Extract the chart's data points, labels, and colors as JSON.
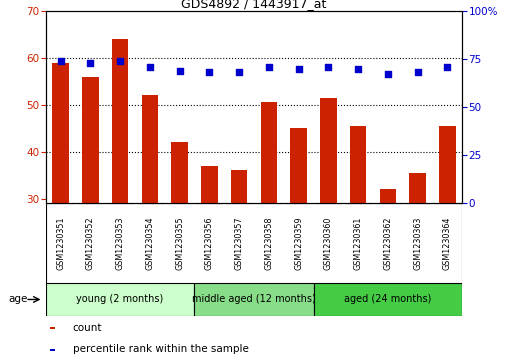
{
  "title": "GDS4892 / 1443917_at",
  "samples": [
    "GSM1230351",
    "GSM1230352",
    "GSM1230353",
    "GSM1230354",
    "GSM1230355",
    "GSM1230356",
    "GSM1230357",
    "GSM1230358",
    "GSM1230359",
    "GSM1230360",
    "GSM1230361",
    "GSM1230362",
    "GSM1230363",
    "GSM1230364"
  ],
  "counts": [
    59,
    56,
    64,
    52,
    42,
    37,
    36,
    50.5,
    45,
    51.5,
    45.5,
    32,
    35.5,
    45.5
  ],
  "percentile_ranks": [
    74,
    73,
    74,
    71,
    69,
    68,
    68,
    71,
    70,
    71,
    70,
    67,
    68,
    71
  ],
  "ylim_left": [
    29,
    70
  ],
  "ylim_right": [
    0,
    100
  ],
  "yticks_left": [
    30,
    40,
    50,
    60,
    70
  ],
  "yticks_right": [
    0,
    25,
    50,
    75,
    100
  ],
  "bar_color": "#cc2200",
  "dot_color": "#0000cc",
  "tick_area_color": "#cccccc",
  "groups": [
    {
      "label": "young (2 months)",
      "start": 0,
      "end": 5,
      "color": "#ccffcc"
    },
    {
      "label": "middle aged (12 months)",
      "start": 5,
      "end": 9,
      "color": "#88dd88"
    },
    {
      "label": "aged (24 months)",
      "start": 9,
      "end": 14,
      "color": "#44cc44"
    }
  ],
  "age_label": "age",
  "legend_items": [
    {
      "label": "count",
      "color": "#cc2200"
    },
    {
      "label": "percentile rank within the sample",
      "color": "#0000cc"
    }
  ],
  "grid_yticks": [
    40,
    50,
    60
  ]
}
